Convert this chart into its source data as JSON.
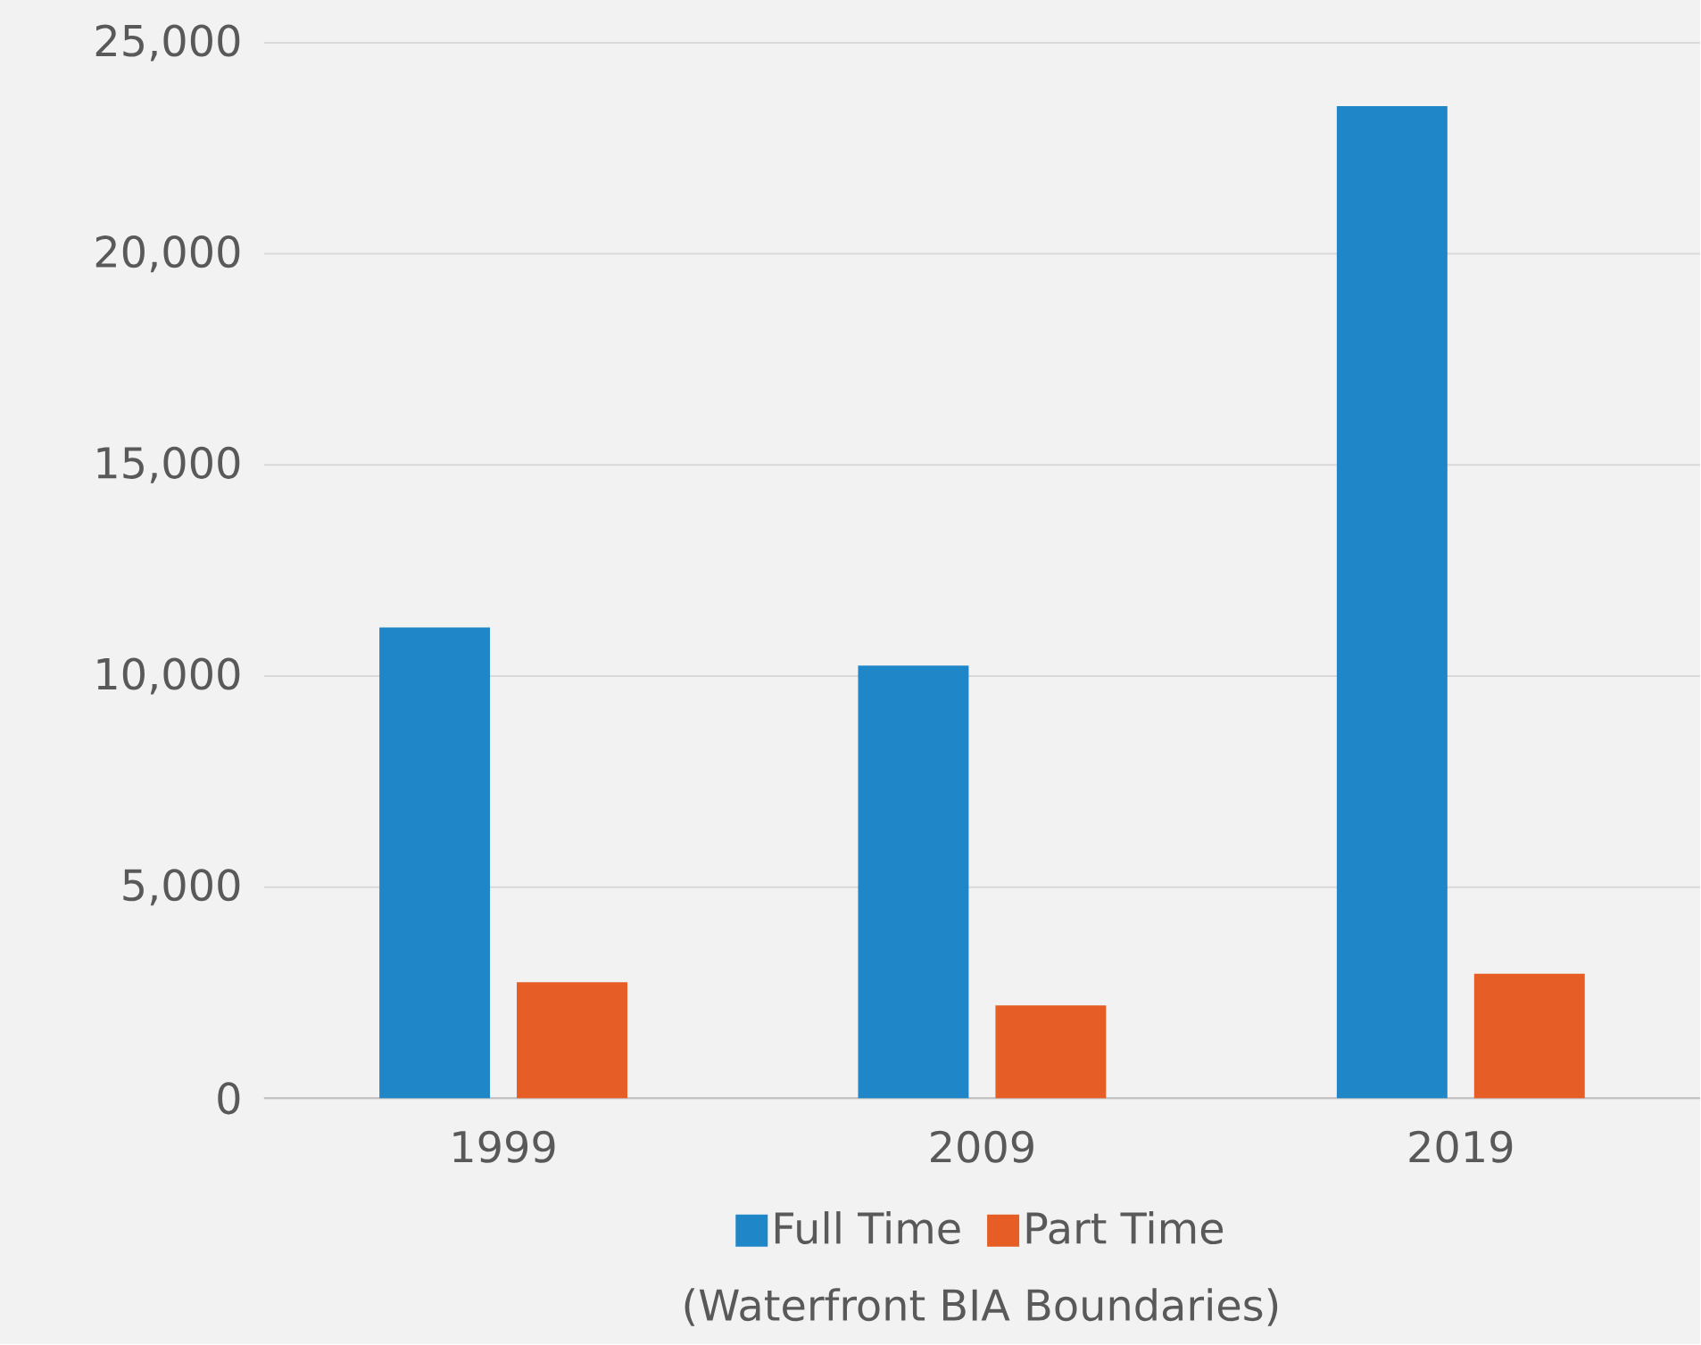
{
  "chart_data": {
    "type": "bar",
    "categories": [
      "1999",
      "2009",
      "2019"
    ],
    "series": [
      {
        "name": "Full Time",
        "color": "#1f86c8",
        "values": [
          11150,
          10250,
          23500
        ]
      },
      {
        "name": "Part Time",
        "color": "#e65e25",
        "values": [
          2750,
          2200,
          2950
        ]
      }
    ],
    "ylim": [
      0,
      25000
    ],
    "yticks": [
      {
        "value": 0,
        "label": "0"
      },
      {
        "value": 5000,
        "label": "5,000"
      },
      {
        "value": 10000,
        "label": "10,000"
      },
      {
        "value": 15000,
        "label": "15,000"
      },
      {
        "value": 20000,
        "label": "20,000"
      },
      {
        "value": 25000,
        "label": "25,000"
      }
    ],
    "grid": "y",
    "legend": "bottom",
    "annotations": [
      "(Waterfront BIA Boundaries)"
    ]
  }
}
